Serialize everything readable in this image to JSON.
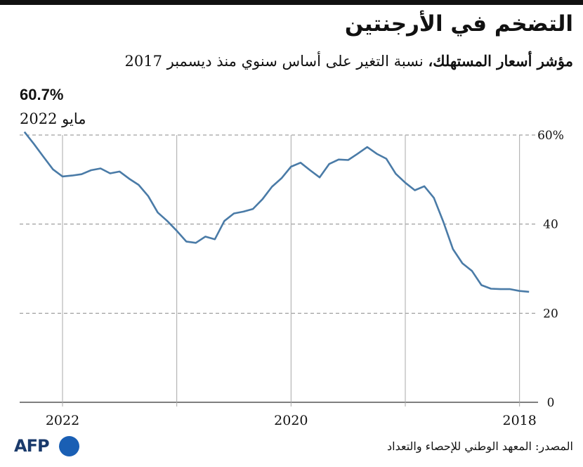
{
  "header": {
    "title": "التضخم في الأرجنتين",
    "subtitle_bold": "مؤشر أسعار المستهلك،",
    "subtitle_rest": " نسبة التغير على أساس سنوي منذ ديسمبر 2017"
  },
  "callout": {
    "value": "60.7%",
    "date": "مايو 2022"
  },
  "footer": {
    "source": "المصدر: المعهد الوطني للإحصاء والتعداد",
    "logo_text": "AFP"
  },
  "colors": {
    "line": "#4a7ba7",
    "grid": "#8a8a8a",
    "text": "#111111"
  },
  "chart_data": {
    "type": "line",
    "x_direction": "right-to-left",
    "x": [
      "2017-12",
      "2018-01",
      "2018-02",
      "2018-03",
      "2018-04",
      "2018-05",
      "2018-06",
      "2018-07",
      "2018-08",
      "2018-09",
      "2018-10",
      "2018-11",
      "2018-12",
      "2019-01",
      "2019-02",
      "2019-03",
      "2019-04",
      "2019-05",
      "2019-06",
      "2019-07",
      "2019-08",
      "2019-09",
      "2019-10",
      "2019-11",
      "2019-12",
      "2020-01",
      "2020-02",
      "2020-03",
      "2020-04",
      "2020-05",
      "2020-06",
      "2020-07",
      "2020-08",
      "2020-09",
      "2020-10",
      "2020-11",
      "2020-12",
      "2021-01",
      "2021-02",
      "2021-03",
      "2021-04",
      "2021-05",
      "2021-06",
      "2021-07",
      "2021-08",
      "2021-09",
      "2021-10",
      "2021-11",
      "2021-12",
      "2022-01",
      "2022-02",
      "2022-03",
      "2022-04",
      "2022-05"
    ],
    "series": [
      {
        "values": [
          24.8,
          25.0,
          25.4,
          25.4,
          25.5,
          26.3,
          29.5,
          31.2,
          34.4,
          40.5,
          45.9,
          48.5,
          47.6,
          49.3,
          51.3,
          54.7,
          55.8,
          57.3,
          55.8,
          54.4,
          54.5,
          53.5,
          50.5,
          52.1,
          53.8,
          52.9,
          50.3,
          48.4,
          45.6,
          43.4,
          42.8,
          42.4,
          40.7,
          36.6,
          37.2,
          35.8,
          36.1,
          38.5,
          40.7,
          42.6,
          46.3,
          48.8,
          50.2,
          51.8,
          51.4,
          52.5,
          52.1,
          51.2,
          50.9,
          50.7,
          52.3,
          55.1,
          58.0,
          60.7
        ]
      }
    ],
    "xticks": [
      "2018",
      "2020",
      "2022"
    ],
    "yticks": [
      "0",
      "20",
      "40",
      "60%"
    ],
    "ylim": [
      0,
      60
    ],
    "grid": "horizontal dashed, vertical solid at January"
  }
}
